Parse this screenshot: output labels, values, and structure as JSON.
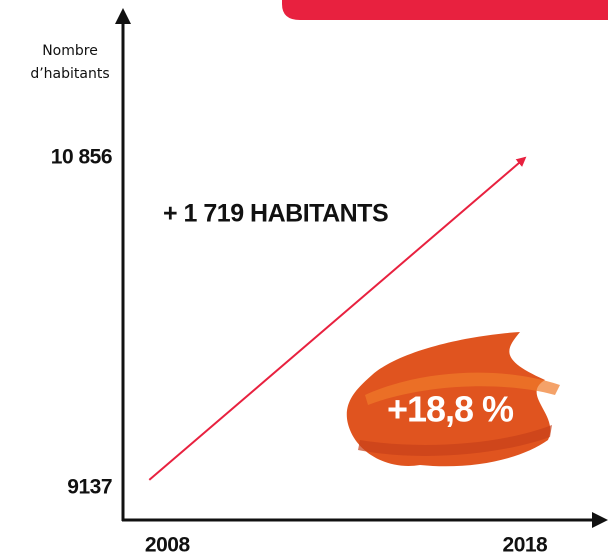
{
  "chart_data": {
    "type": "line",
    "y_label": [
      "Nombre",
      "d’habitants"
    ],
    "x": [
      2008,
      2018
    ],
    "values": [
      9137,
      10856
    ],
    "color": "#e8213f",
    "xlim": [
      2007.3,
      2020
    ],
    "xticks": [
      2008,
      2018
    ],
    "ylim": [
      8923,
      11619
    ],
    "yticks": [
      9137,
      {
        "value": 10856,
        "label": "10 856"
      }
    ],
    "annotations": [
      "+ 1 719 HABITANTS",
      "+18,8 %"
    ]
  }
}
